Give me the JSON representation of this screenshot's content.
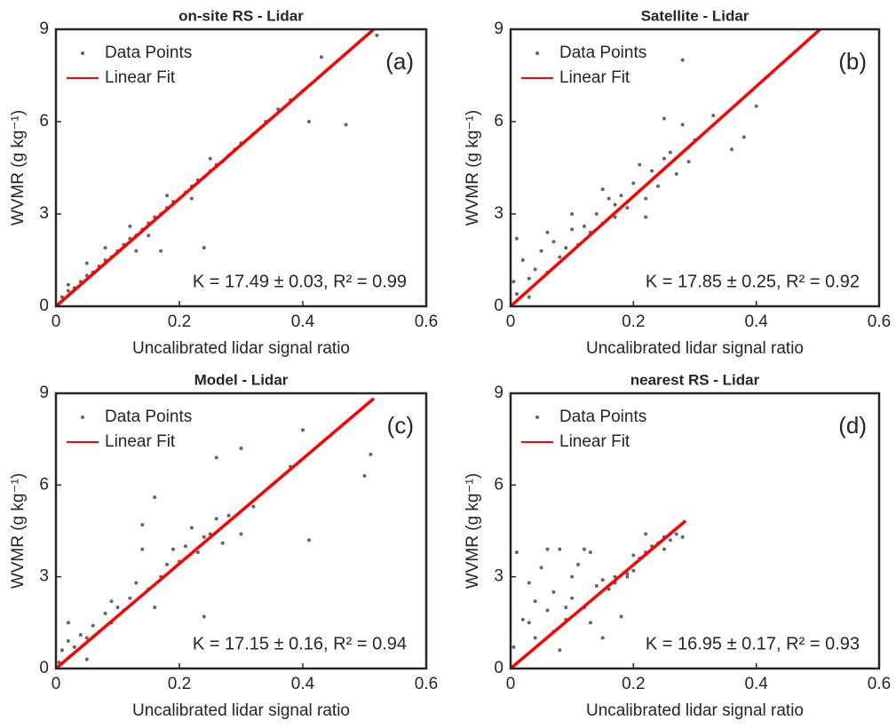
{
  "chart_data": [
    {
      "type": "scatter",
      "title": "on-site RS - Lidar",
      "xlabel": "Uncalibrated lidar signal ratio",
      "ylabel": "WVMR (g kg⁻¹)",
      "annotation": "K = 17.49 ± 0.03, R² = 0.99",
      "panel_label": "(a)",
      "legend": "upper left",
      "xlim": [
        0,
        0.6
      ],
      "ylim": [
        0,
        9
      ],
      "xticks": [
        0,
        0.2,
        0.4,
        0.6
      ],
      "yticks": [
        0,
        3,
        6,
        9
      ],
      "series": [
        {
          "name": "Data Points",
          "color": "#666666",
          "x": [
            0.01,
            0.02,
            0.03,
            0.04,
            0.05,
            0.06,
            0.07,
            0.08,
            0.09,
            0.1,
            0.11,
            0.12,
            0.13,
            0.14,
            0.15,
            0.16,
            0.17,
            0.18,
            0.19,
            0.2,
            0.21,
            0.22,
            0.23,
            0.24,
            0.25,
            0.26,
            0.27,
            0.28,
            0.29,
            0.3,
            0.32,
            0.34,
            0.36,
            0.38,
            0.4,
            0.02,
            0.05,
            0.08,
            0.12,
            0.15,
            0.18,
            0.22,
            0.25,
            0.13,
            0.17,
            0.24,
            0.47,
            0.43,
            0.41,
            0.52
          ],
          "values": [
            0.3,
            0.5,
            0.6,
            0.8,
            1.0,
            1.1,
            1.3,
            1.5,
            1.6,
            1.8,
            2.0,
            2.2,
            2.3,
            2.5,
            2.7,
            2.9,
            3.0,
            3.2,
            3.4,
            3.5,
            3.7,
            3.9,
            4.1,
            4.2,
            4.4,
            4.6,
            4.7,
            4.9,
            5.1,
            5.3,
            5.6,
            6.0,
            6.4,
            6.7,
            7.0,
            0.7,
            1.4,
            1.9,
            2.6,
            2.3,
            3.6,
            3.5,
            4.8,
            1.8,
            1.8,
            1.9,
            5.9,
            8.1,
            6.0,
            8.8
          ]
        },
        {
          "name": "Linear Fit",
          "color": "#ff0000",
          "x": [
            0,
            0.515
          ],
          "values": [
            0,
            9.0
          ]
        }
      ]
    },
    {
      "type": "scatter",
      "title": "Satellite - Lidar",
      "xlabel": "Uncalibrated lidar signal ratio",
      "ylabel": "WVMR (g kg⁻¹)",
      "annotation": "K = 17.85 ± 0.25, R² = 0.92",
      "panel_label": "(b)",
      "legend": "upper left",
      "xlim": [
        0,
        0.6
      ],
      "ylim": [
        0,
        9
      ],
      "xticks": [
        0,
        0.2,
        0.4,
        0.6
      ],
      "yticks": [
        0,
        3,
        6,
        9
      ],
      "series": [
        {
          "name": "Data Points",
          "color": "#666666",
          "x": [
            0.005,
            0.01,
            0.02,
            0.03,
            0.04,
            0.05,
            0.06,
            0.07,
            0.08,
            0.09,
            0.1,
            0.11,
            0.12,
            0.13,
            0.14,
            0.15,
            0.16,
            0.17,
            0.18,
            0.19,
            0.2,
            0.21,
            0.22,
            0.23,
            0.24,
            0.25,
            0.26,
            0.27,
            0.28,
            0.29,
            0.3,
            0.33,
            0.36,
            0.38,
            0.4,
            0.28,
            0.01,
            0.03,
            0.06,
            0.1,
            0.15,
            0.22,
            0.25,
            0.17
          ],
          "values": [
            0.8,
            0.4,
            1.5,
            0.9,
            1.2,
            1.8,
            1.1,
            2.1,
            1.6,
            1.9,
            2.5,
            2.0,
            2.6,
            2.4,
            3.0,
            2.7,
            3.5,
            2.9,
            3.6,
            3.2,
            4.0,
            4.6,
            3.5,
            4.4,
            3.9,
            4.8,
            5.0,
            4.3,
            5.9,
            4.7,
            5.4,
            6.2,
            5.1,
            5.5,
            6.5,
            8.0,
            2.2,
            0.3,
            2.4,
            3.0,
            3.8,
            2.9,
            6.1,
            3.3
          ]
        },
        {
          "name": "Linear Fit",
          "color": "#ff0000",
          "x": [
            0,
            0.504
          ],
          "values": [
            0,
            9.0
          ]
        }
      ]
    },
    {
      "type": "scatter",
      "title": "Model - Lidar",
      "xlabel": "Uncalibrated lidar signal ratio",
      "ylabel": "WVMR (g kg⁻¹)",
      "annotation": "K = 17.15 ± 0.16, R² = 0.94",
      "panel_label": "(c)",
      "legend": "upper left",
      "xlim": [
        0,
        0.6
      ],
      "ylim": [
        0,
        9
      ],
      "xticks": [
        0,
        0.2,
        0.4,
        0.6
      ],
      "yticks": [
        0,
        3,
        6,
        9
      ],
      "series": [
        {
          "name": "Data Points",
          "color": "#666666",
          "x": [
            0.005,
            0.01,
            0.02,
            0.03,
            0.04,
            0.05,
            0.06,
            0.07,
            0.08,
            0.09,
            0.1,
            0.11,
            0.12,
            0.13,
            0.14,
            0.15,
            0.16,
            0.17,
            0.18,
            0.19,
            0.2,
            0.21,
            0.22,
            0.23,
            0.24,
            0.25,
            0.26,
            0.27,
            0.28,
            0.3,
            0.32,
            0.35,
            0.38,
            0.4,
            0.5,
            0.51,
            0.02,
            0.05,
            0.09,
            0.14,
            0.16,
            0.24,
            0.26,
            0.3,
            0.41
          ],
          "values": [
            0.2,
            0.6,
            0.9,
            0.7,
            1.1,
            1.0,
            1.4,
            1.2,
            1.8,
            1.5,
            2.0,
            1.9,
            2.3,
            2.8,
            4.7,
            2.6,
            5.6,
            3.0,
            3.4,
            3.9,
            3.5,
            4.0,
            4.6,
            3.8,
            4.3,
            4.4,
            4.9,
            4.1,
            5.0,
            7.2,
            5.3,
            6.0,
            6.6,
            7.8,
            6.3,
            7.0,
            1.5,
            0.3,
            2.2,
            3.9,
            2.0,
            1.7,
            6.9,
            4.4,
            4.2
          ]
        },
        {
          "name": "Linear Fit",
          "color": "#ff0000",
          "x": [
            0,
            0.515
          ],
          "values": [
            0,
            8.83
          ]
        }
      ]
    },
    {
      "type": "scatter",
      "title": "nearest RS - Lidar",
      "xlabel": "Uncalibrated lidar signal ratio",
      "ylabel": "WVMR (g kg⁻¹)",
      "annotation": "K = 16.95 ± 0.17, R² = 0.93",
      "panel_label": "(d)",
      "legend": "upper left",
      "xlim": [
        0,
        0.6
      ],
      "ylim": [
        0,
        9
      ],
      "xticks": [
        0,
        0.2,
        0.4,
        0.6
      ],
      "yticks": [
        0,
        3,
        6,
        9
      ],
      "series": [
        {
          "name": "Data Points",
          "color": "#666666",
          "x": [
            0.005,
            0.01,
            0.02,
            0.03,
            0.04,
            0.05,
            0.06,
            0.07,
            0.08,
            0.09,
            0.1,
            0.11,
            0.12,
            0.13,
            0.14,
            0.15,
            0.16,
            0.17,
            0.18,
            0.19,
            0.2,
            0.21,
            0.22,
            0.23,
            0.24,
            0.25,
            0.26,
            0.27,
            0.28,
            0.04,
            0.06,
            0.08,
            0.1,
            0.12,
            0.15,
            0.2,
            0.22,
            0.07,
            0.09,
            0.13,
            0.17,
            0.19,
            0.03,
            0.25
          ],
          "values": [
            0.7,
            3.8,
            1.6,
            2.8,
            2.2,
            3.3,
            1.9,
            2.5,
            3.9,
            1.6,
            2.3,
            3.4,
            2.0,
            3.8,
            2.7,
            2.9,
            2.6,
            3.0,
            1.7,
            3.1,
            3.2,
            3.6,
            3.8,
            4.0,
            4.1,
            4.3,
            4.2,
            4.4,
            4.3,
            1.0,
            3.9,
            0.6,
            3.0,
            3.9,
            1.0,
            3.7,
            4.4,
            1.2,
            2.0,
            1.5,
            2.8,
            3.0,
            1.5,
            3.9
          ]
        },
        {
          "name": "Linear Fit",
          "color": "#ff0000",
          "x": [
            0,
            0.285
          ],
          "values": [
            0,
            4.83
          ]
        }
      ]
    }
  ]
}
